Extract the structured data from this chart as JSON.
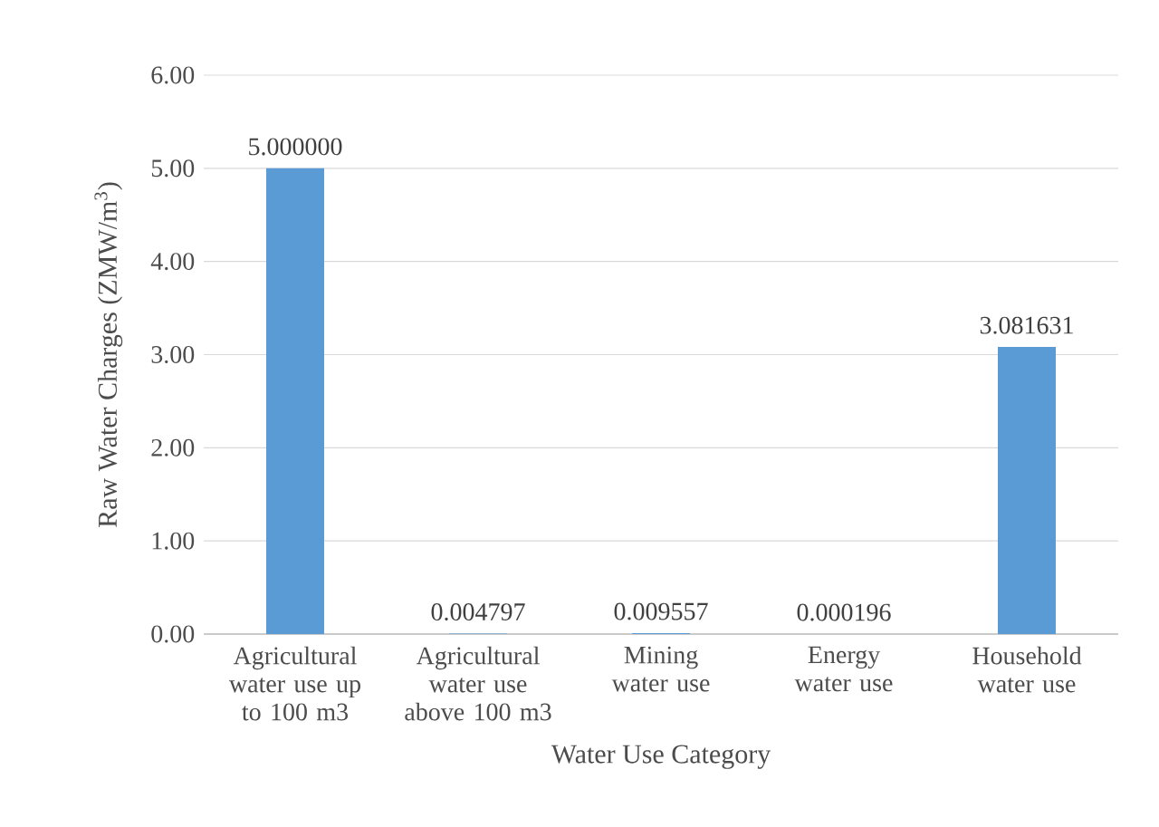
{
  "chart_data": {
    "type": "bar",
    "categories": [
      "Agricultural water use up to 100 m3",
      "Agricultural water use above 100 m3",
      "Mining water use",
      "Energy water use",
      "Household water use"
    ],
    "values": [
      5.0,
      0.004797,
      0.009557,
      0.000196,
      3.081631
    ],
    "value_labels": [
      "5.000000",
      "0.004797",
      "0.009557",
      "0.000196",
      "3.081631"
    ],
    "color": "#5b9bd5",
    "xlabel": "Water Use Category",
    "ylabel": "Raw Water Charges  (ZMW/m$^{3}$)",
    "ylim": [
      0,
      6
    ],
    "yticks": [
      {
        "value": 0,
        "label": "0.00"
      },
      {
        "value": 1,
        "label": "1.00"
      },
      {
        "value": 2,
        "label": "2.00"
      },
      {
        "value": 3,
        "label": "3.00"
      },
      {
        "value": 4,
        "label": "4.00"
      },
      {
        "value": 5,
        "label": "5.00"
      },
      {
        "value": 6,
        "label": "6.00"
      }
    ],
    "grid": "y"
  }
}
